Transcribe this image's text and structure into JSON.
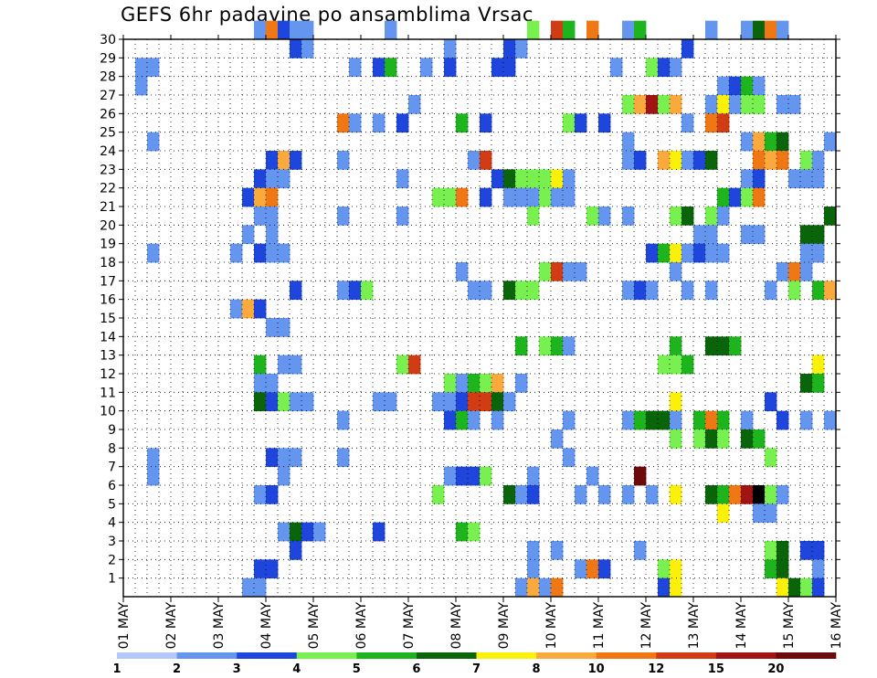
{
  "chart_data": {
    "type": "heatmap",
    "title": "GEFS 6hr padavine po ansamblima Vrsac",
    "xlabel": "",
    "ylabel": "",
    "x_ticks": [
      "01 MAY",
      "02 MAY",
      "03 MAY",
      "04 MAY",
      "05 MAY",
      "06 MAY",
      "07 MAY",
      "08 MAY",
      "09 MAY",
      "10 MAY",
      "11 MAY",
      "12 MAY",
      "13 MAY",
      "14 MAY",
      "15 MAY",
      "16 MAY"
    ],
    "y_ticks": [
      "1",
      "2",
      "3",
      "4",
      "5",
      "6",
      "7",
      "8",
      "9",
      "10",
      "11",
      "12",
      "13",
      "14",
      "15",
      "16",
      "17",
      "18",
      "19",
      "20",
      "21",
      "22",
      "23",
      "24",
      "25",
      "26",
      "27",
      "28",
      "29",
      "30"
    ],
    "x_range_steps": [
      0,
      60
    ],
    "y_range_members": [
      0,
      30
    ],
    "grid": "dotted",
    "legend_position": "bottom",
    "legend": {
      "labels": [
        "1",
        "2",
        "3",
        "4",
        "5",
        "6",
        "7",
        "8",
        "10",
        "12",
        "15",
        "20"
      ],
      "colors": [
        "#b4c8fa",
        "#6496f0",
        "#1e46dc",
        "#78f050",
        "#1eb41e",
        "#0a640a",
        "#faf00a",
        "#faaa3c",
        "#f07814",
        "#d23c14",
        "#a01414",
        "#6e0a0a"
      ]
    },
    "cells": [
      [
        30,
        11,
        1
      ],
      [
        30,
        12,
        8
      ],
      [
        30,
        13,
        2
      ],
      [
        30,
        14,
        1
      ],
      [
        30,
        15,
        1
      ],
      [
        30,
        22,
        1
      ],
      [
        30,
        34,
        3
      ],
      [
        30,
        36,
        9
      ],
      [
        30,
        37,
        4
      ],
      [
        30,
        39,
        8
      ],
      [
        30,
        42,
        1
      ],
      [
        30,
        43,
        4
      ],
      [
        30,
        49,
        1
      ],
      [
        30,
        52,
        1
      ],
      [
        30,
        53,
        5
      ],
      [
        30,
        54,
        8
      ],
      [
        30,
        55,
        1
      ],
      [
        29,
        14,
        2
      ],
      [
        29,
        15,
        1
      ],
      [
        29,
        27,
        1
      ],
      [
        29,
        32,
        2
      ],
      [
        29,
        33,
        1
      ],
      [
        29,
        47,
        2
      ],
      [
        28,
        1,
        1
      ],
      [
        28,
        2,
        1
      ],
      [
        28,
        19,
        1
      ],
      [
        28,
        21,
        2
      ],
      [
        28,
        22,
        4
      ],
      [
        28,
        25,
        1
      ],
      [
        28,
        27,
        2
      ],
      [
        28,
        31,
        2
      ],
      [
        28,
        32,
        2
      ],
      [
        28,
        41,
        1
      ],
      [
        28,
        44,
        3
      ],
      [
        28,
        45,
        2
      ],
      [
        28,
        46,
        1
      ],
      [
        27,
        1,
        1
      ],
      [
        27,
        50,
        1
      ],
      [
        27,
        51,
        2
      ],
      [
        27,
        52,
        4
      ],
      [
        27,
        53,
        1
      ],
      [
        26,
        24,
        1
      ],
      [
        26,
        42,
        3
      ],
      [
        26,
        43,
        7
      ],
      [
        26,
        44,
        10
      ],
      [
        26,
        45,
        3
      ],
      [
        26,
        46,
        7
      ],
      [
        26,
        49,
        1
      ],
      [
        26,
        50,
        6
      ],
      [
        26,
        51,
        1
      ],
      [
        26,
        52,
        3
      ],
      [
        26,
        53,
        3
      ],
      [
        26,
        55,
        1
      ],
      [
        26,
        56,
        1
      ],
      [
        25,
        18,
        8
      ],
      [
        25,
        19,
        1
      ],
      [
        25,
        21,
        1
      ],
      [
        25,
        23,
        2
      ],
      [
        25,
        28,
        4
      ],
      [
        25,
        30,
        2
      ],
      [
        25,
        37,
        3
      ],
      [
        25,
        38,
        2
      ],
      [
        25,
        40,
        2
      ],
      [
        25,
        47,
        1
      ],
      [
        25,
        49,
        8
      ],
      [
        25,
        50,
        9
      ],
      [
        24,
        2,
        1
      ],
      [
        24,
        42,
        1
      ],
      [
        24,
        52,
        1
      ],
      [
        24,
        53,
        7
      ],
      [
        24,
        54,
        4
      ],
      [
        24,
        55,
        5
      ],
      [
        24,
        59,
        1
      ],
      [
        23,
        12,
        2
      ],
      [
        23,
        13,
        7
      ],
      [
        23,
        14,
        2
      ],
      [
        23,
        18,
        1
      ],
      [
        23,
        29,
        1
      ],
      [
        23,
        30,
        9
      ],
      [
        23,
        42,
        1
      ],
      [
        23,
        43,
        2
      ],
      [
        23,
        45,
        7
      ],
      [
        23,
        46,
        6
      ],
      [
        23,
        47,
        1
      ],
      [
        23,
        48,
        2
      ],
      [
        23,
        49,
        5
      ],
      [
        23,
        53,
        8
      ],
      [
        23,
        54,
        7
      ],
      [
        23,
        55,
        8
      ],
      [
        23,
        57,
        3
      ],
      [
        23,
        58,
        1
      ],
      [
        22,
        11,
        2
      ],
      [
        22,
        12,
        1
      ],
      [
        22,
        13,
        1
      ],
      [
        22,
        23,
        1
      ],
      [
        22,
        31,
        2
      ],
      [
        22,
        32,
        5
      ],
      [
        22,
        33,
        3
      ],
      [
        22,
        34,
        3
      ],
      [
        22,
        35,
        3
      ],
      [
        22,
        36,
        6
      ],
      [
        22,
        37,
        1
      ],
      [
        22,
        52,
        1
      ],
      [
        22,
        53,
        2
      ],
      [
        22,
        56,
        1
      ],
      [
        22,
        57,
        1
      ],
      [
        22,
        58,
        1
      ],
      [
        21,
        10,
        2
      ],
      [
        21,
        11,
        7
      ],
      [
        21,
        12,
        8
      ],
      [
        21,
        26,
        3
      ],
      [
        21,
        27,
        3
      ],
      [
        21,
        28,
        8
      ],
      [
        21,
        30,
        2
      ],
      [
        21,
        32,
        1
      ],
      [
        21,
        33,
        1
      ],
      [
        21,
        34,
        1
      ],
      [
        21,
        35,
        3
      ],
      [
        21,
        36,
        1
      ],
      [
        21,
        37,
        1
      ],
      [
        21,
        50,
        4
      ],
      [
        21,
        51,
        2
      ],
      [
        21,
        52,
        3
      ],
      [
        21,
        53,
        8
      ],
      [
        20,
        11,
        1
      ],
      [
        20,
        12,
        1
      ],
      [
        20,
        18,
        1
      ],
      [
        20,
        23,
        1
      ],
      [
        20,
        34,
        3
      ],
      [
        20,
        39,
        3
      ],
      [
        20,
        40,
        1
      ],
      [
        20,
        42,
        1
      ],
      [
        20,
        46,
        3
      ],
      [
        20,
        47,
        5
      ],
      [
        20,
        49,
        3
      ],
      [
        20,
        50,
        1
      ],
      [
        20,
        59,
        5
      ],
      [
        19,
        10,
        1
      ],
      [
        19,
        12,
        1
      ],
      [
        19,
        48,
        1
      ],
      [
        19,
        49,
        1
      ],
      [
        19,
        52,
        1
      ],
      [
        19,
        53,
        1
      ],
      [
        19,
        57,
        5
      ],
      [
        19,
        58,
        5
      ],
      [
        18,
        2,
        1
      ],
      [
        18,
        9,
        1
      ],
      [
        18,
        11,
        2
      ],
      [
        18,
        12,
        1
      ],
      [
        18,
        13,
        1
      ],
      [
        18,
        44,
        2
      ],
      [
        18,
        45,
        4
      ],
      [
        18,
        46,
        6
      ],
      [
        18,
        47,
        1
      ],
      [
        18,
        48,
        2
      ],
      [
        18,
        49,
        1
      ],
      [
        18,
        50,
        1
      ],
      [
        18,
        57,
        1
      ],
      [
        18,
        58,
        1
      ],
      [
        17,
        28,
        1
      ],
      [
        17,
        35,
        3
      ],
      [
        17,
        36,
        9
      ],
      [
        17,
        37,
        1
      ],
      [
        17,
        38,
        1
      ],
      [
        17,
        46,
        1
      ],
      [
        17,
        55,
        1
      ],
      [
        17,
        56,
        8
      ],
      [
        17,
        57,
        1
      ],
      [
        16,
        14,
        2
      ],
      [
        16,
        18,
        1
      ],
      [
        16,
        19,
        2
      ],
      [
        16,
        20,
        3
      ],
      [
        16,
        29,
        1
      ],
      [
        16,
        30,
        1
      ],
      [
        16,
        32,
        5
      ],
      [
        16,
        33,
        3
      ],
      [
        16,
        34,
        3
      ],
      [
        16,
        42,
        1
      ],
      [
        16,
        43,
        2
      ],
      [
        16,
        44,
        1
      ],
      [
        16,
        47,
        1
      ],
      [
        16,
        49,
        1
      ],
      [
        16,
        54,
        1
      ],
      [
        16,
        56,
        3
      ],
      [
        16,
        58,
        4
      ],
      [
        16,
        59,
        7
      ],
      [
        15,
        9,
        1
      ],
      [
        15,
        10,
        7
      ],
      [
        15,
        11,
        2
      ],
      [
        14,
        12,
        1
      ],
      [
        14,
        13,
        1
      ],
      [
        13,
        33,
        4
      ],
      [
        13,
        35,
        3
      ],
      [
        13,
        36,
        4
      ],
      [
        13,
        37,
        1
      ],
      [
        13,
        46,
        4
      ],
      [
        13,
        49,
        5
      ],
      [
        13,
        50,
        5
      ],
      [
        13,
        51,
        4
      ],
      [
        12,
        11,
        4
      ],
      [
        12,
        13,
        1
      ],
      [
        12,
        14,
        1
      ],
      [
        12,
        23,
        3
      ],
      [
        12,
        24,
        9
      ],
      [
        12,
        45,
        3
      ],
      [
        12,
        46,
        3
      ],
      [
        12,
        47,
        4
      ],
      [
        12,
        58,
        6
      ],
      [
        11,
        11,
        1
      ],
      [
        11,
        12,
        1
      ],
      [
        11,
        27,
        3
      ],
      [
        11,
        28,
        1
      ],
      [
        11,
        29,
        4
      ],
      [
        11,
        30,
        3
      ],
      [
        11,
        31,
        7
      ],
      [
        11,
        33,
        1
      ],
      [
        11,
        57,
        5
      ],
      [
        11,
        58,
        4
      ],
      [
        10,
        11,
        5
      ],
      [
        10,
        12,
        2
      ],
      [
        10,
        13,
        3
      ],
      [
        10,
        14,
        1
      ],
      [
        10,
        15,
        1
      ],
      [
        10,
        21,
        1
      ],
      [
        10,
        22,
        1
      ],
      [
        10,
        26,
        1
      ],
      [
        10,
        27,
        1
      ],
      [
        10,
        28,
        2
      ],
      [
        10,
        29,
        9
      ],
      [
        10,
        30,
        9
      ],
      [
        10,
        31,
        5
      ],
      [
        10,
        32,
        1
      ],
      [
        10,
        46,
        6
      ],
      [
        10,
        54,
        2
      ],
      [
        9,
        18,
        1
      ],
      [
        9,
        27,
        2
      ],
      [
        9,
        28,
        4
      ],
      [
        9,
        29,
        1
      ],
      [
        9,
        31,
        1
      ],
      [
        9,
        37,
        1
      ],
      [
        9,
        42,
        1
      ],
      [
        9,
        43,
        4
      ],
      [
        9,
        44,
        5
      ],
      [
        9,
        45,
        5
      ],
      [
        9,
        46,
        1
      ],
      [
        9,
        48,
        4
      ],
      [
        9,
        49,
        8
      ],
      [
        9,
        50,
        4
      ],
      [
        9,
        52,
        1
      ],
      [
        9,
        55,
        2
      ],
      [
        9,
        57,
        1
      ],
      [
        9,
        59,
        1
      ],
      [
        8,
        36,
        1
      ],
      [
        8,
        46,
        3
      ],
      [
        8,
        48,
        3
      ],
      [
        8,
        49,
        5
      ],
      [
        8,
        50,
        3
      ],
      [
        8,
        52,
        5
      ],
      [
        8,
        53,
        4
      ],
      [
        7,
        2,
        1
      ],
      [
        7,
        12,
        2
      ],
      [
        7,
        13,
        1
      ],
      [
        7,
        14,
        1
      ],
      [
        7,
        18,
        1
      ],
      [
        7,
        37,
        1
      ],
      [
        7,
        54,
        3
      ],
      [
        6,
        2,
        1
      ],
      [
        6,
        13,
        1
      ],
      [
        6,
        27,
        1
      ],
      [
        6,
        28,
        2
      ],
      [
        6,
        29,
        2
      ],
      [
        6,
        30,
        3
      ],
      [
        6,
        34,
        1
      ],
      [
        6,
        39,
        1
      ],
      [
        6,
        43,
        11
      ],
      [
        5,
        11,
        1
      ],
      [
        5,
        12,
        2
      ],
      [
        5,
        26,
        3
      ],
      [
        5,
        32,
        5
      ],
      [
        5,
        33,
        1
      ],
      [
        5,
        34,
        2
      ],
      [
        5,
        38,
        1
      ],
      [
        5,
        40,
        1
      ],
      [
        5,
        42,
        1
      ],
      [
        5,
        44,
        1
      ],
      [
        5,
        46,
        6
      ],
      [
        5,
        49,
        5
      ],
      [
        5,
        50,
        4
      ],
      [
        5,
        51,
        8
      ],
      [
        5,
        52,
        10
      ],
      [
        5,
        53,
        12
      ],
      [
        5,
        54,
        3
      ],
      [
        5,
        55,
        1
      ],
      [
        4,
        50,
        6
      ],
      [
        4,
        53,
        1
      ],
      [
        4,
        54,
        1
      ],
      [
        3,
        13,
        1
      ],
      [
        3,
        14,
        5
      ],
      [
        3,
        15,
        2
      ],
      [
        3,
        16,
        1
      ],
      [
        3,
        21,
        2
      ],
      [
        3,
        28,
        4
      ],
      [
        3,
        29,
        3
      ],
      [
        2,
        14,
        2
      ],
      [
        2,
        34,
        1
      ],
      [
        2,
        36,
        1
      ],
      [
        2,
        43,
        1
      ],
      [
        2,
        54,
        3
      ],
      [
        2,
        55,
        5
      ],
      [
        2,
        57,
        2
      ],
      [
        2,
        58,
        2
      ],
      [
        1,
        11,
        2
      ],
      [
        1,
        12,
        2
      ],
      [
        1,
        34,
        1
      ],
      [
        1,
        38,
        1
      ],
      [
        1,
        39,
        8
      ],
      [
        1,
        40,
        2
      ],
      [
        1,
        45,
        3
      ],
      [
        1,
        46,
        6
      ],
      [
        1,
        54,
        4
      ],
      [
        1,
        55,
        5
      ],
      [
        1,
        58,
        1
      ],
      [
        0,
        10,
        1
      ],
      [
        0,
        11,
        1
      ],
      [
        0,
        33,
        1
      ],
      [
        0,
        34,
        7
      ],
      [
        0,
        35,
        1
      ],
      [
        0,
        36,
        8
      ],
      [
        0,
        45,
        2
      ],
      [
        0,
        46,
        6
      ],
      [
        0,
        55,
        6
      ],
      [
        0,
        56,
        5
      ],
      [
        0,
        57,
        3
      ],
      [
        0,
        58,
        2
      ]
    ]
  }
}
